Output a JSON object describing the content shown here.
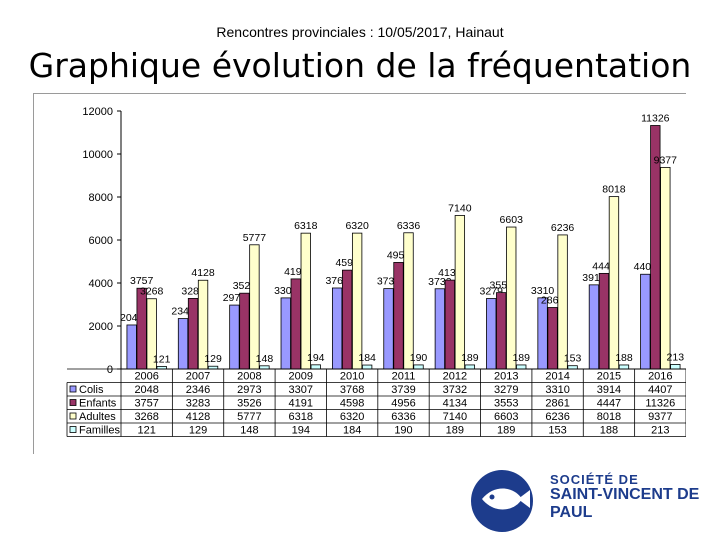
{
  "header": {
    "subtitle": "Rencontres provinciales : 10/05/2017, Hainaut",
    "title": "Graphique évolution de la fréquentation"
  },
  "logo": {
    "line1": "SOCIÉTÉ DE",
    "line2": "SAINT-VINCENT DE PAUL",
    "color": "#1d3c8c"
  },
  "chart_data": {
    "type": "bar",
    "title": "",
    "categories": [
      "2006",
      "2007",
      "2008",
      "2009",
      "2010",
      "2011",
      "2012",
      "2013",
      "2014",
      "2015",
      "2016"
    ],
    "series": [
      {
        "name": "Colis",
        "color": "#9999ff",
        "values": [
          2048,
          2346,
          2973,
          3307,
          3768,
          3739,
          3732,
          3279,
          3310,
          3914,
          4407
        ]
      },
      {
        "name": "Enfants",
        "color": "#993366",
        "values": [
          3757,
          3283,
          3526,
          4191,
          4598,
          4956,
          4134,
          3553,
          2861,
          4447,
          11326
        ]
      },
      {
        "name": "Adultes",
        "color": "#ffffcc",
        "values": [
          3268,
          4128,
          5777,
          6318,
          6320,
          6336,
          7140,
          6603,
          6236,
          8018,
          9377
        ]
      },
      {
        "name": "Familles",
        "color": "#ccffff",
        "values": [
          121,
          129,
          148,
          194,
          184,
          190,
          189,
          189,
          153,
          188,
          213
        ]
      }
    ],
    "table": [
      {
        "name": "Colis",
        "values": [
          2048,
          2346,
          2973,
          3307,
          3768,
          3739,
          3732,
          3279,
          3310,
          3914,
          4407
        ]
      },
      {
        "name": "Enfants",
        "values": [
          3757,
          3283,
          3526,
          4191,
          4598,
          4956,
          4134,
          3553,
          2861,
          4447,
          11326
        ]
      },
      {
        "name": "Adultes",
        "values": [
          3268,
          4128,
          5777,
          6318,
          6320,
          6336,
          7140,
          6603,
          6236,
          8018,
          9377
        ]
      },
      {
        "name": "Familles",
        "values": [
          121,
          129,
          148,
          194,
          184,
          190,
          189,
          189,
          153,
          188,
          213
        ]
      }
    ],
    "ylim": [
      0,
      12000
    ],
    "yticks": [
      0,
      2000,
      4000,
      6000,
      8000,
      10000,
      12000
    ],
    "grid": false,
    "legend": "table-left"
  }
}
